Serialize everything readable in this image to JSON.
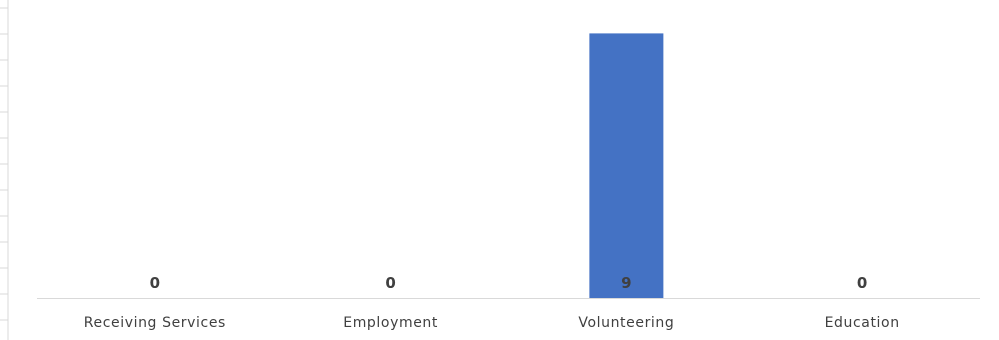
{
  "chart_data": {
    "type": "bar",
    "categories": [
      "Receiving Services",
      "Employment",
      "Volunteering",
      "Education"
    ],
    "values": [
      0,
      0,
      9,
      0
    ],
    "data_labels": [
      "0",
      "0",
      "9",
      "0"
    ],
    "title": "",
    "xlabel": "",
    "ylabel": "",
    "ylim": [
      0,
      10
    ],
    "grid": false,
    "legend": "none",
    "colors": {
      "bar": "#4472C4",
      "axis": "#D9D9D9",
      "text": "#404040"
    }
  }
}
